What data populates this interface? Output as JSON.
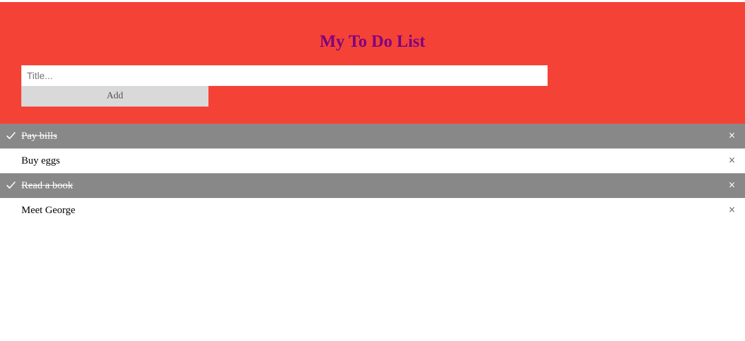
{
  "header": {
    "title": "My To Do List",
    "input_placeholder": "Title...",
    "input_value": "",
    "add_label": "Add"
  },
  "colors": {
    "header_background": "#f44336",
    "title_color": "#800080",
    "checked_background": "#888888",
    "add_button_background": "#d9d9d9"
  },
  "todos": [
    {
      "text": "Pay bills",
      "checked": true,
      "close": "×"
    },
    {
      "text": "Buy eggs",
      "checked": false,
      "close": "×"
    },
    {
      "text": "Read a book",
      "checked": true,
      "close": "×"
    },
    {
      "text": "Meet George",
      "checked": false,
      "close": "×"
    }
  ]
}
